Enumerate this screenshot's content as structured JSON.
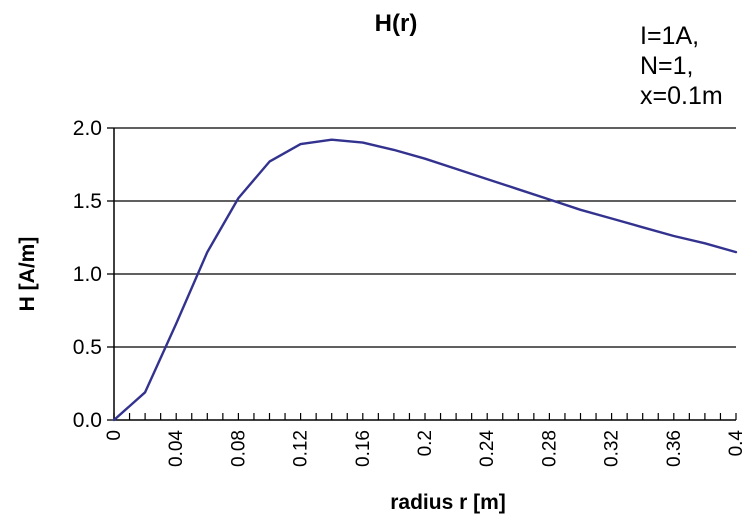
{
  "chart_data": {
    "type": "line",
    "title": "H(r)",
    "annotation": [
      "I=1A,",
      "N=1,",
      "x=0.1m"
    ],
    "xlabel": "radius r [m]",
    "ylabel": "H [A/m]",
    "xlim": [
      0,
      0.4
    ],
    "ylim": [
      0,
      2.0
    ],
    "x_ticks": [
      "0",
      "0.04",
      "0.08",
      "0.12",
      "0.16",
      "0.2",
      "0.24",
      "0.28",
      "0.32",
      "0.36",
      "0.4"
    ],
    "y_ticks": [
      "0.0",
      "0.5",
      "1.0",
      "1.5",
      "2.0"
    ],
    "grid": "horizontal",
    "series": [
      {
        "color": "#33338f",
        "x": [
          0,
          0.02,
          0.04,
          0.06,
          0.08,
          0.1,
          0.12,
          0.14,
          0.16,
          0.18,
          0.2,
          0.22,
          0.24,
          0.26,
          0.28,
          0.3,
          0.32,
          0.34,
          0.36,
          0.38,
          0.4
        ],
        "y": [
          0,
          0.19,
          0.66,
          1.15,
          1.52,
          1.77,
          1.89,
          1.92,
          1.9,
          1.85,
          1.79,
          1.72,
          1.65,
          1.58,
          1.51,
          1.44,
          1.38,
          1.32,
          1.26,
          1.21,
          1.15
        ]
      }
    ]
  }
}
